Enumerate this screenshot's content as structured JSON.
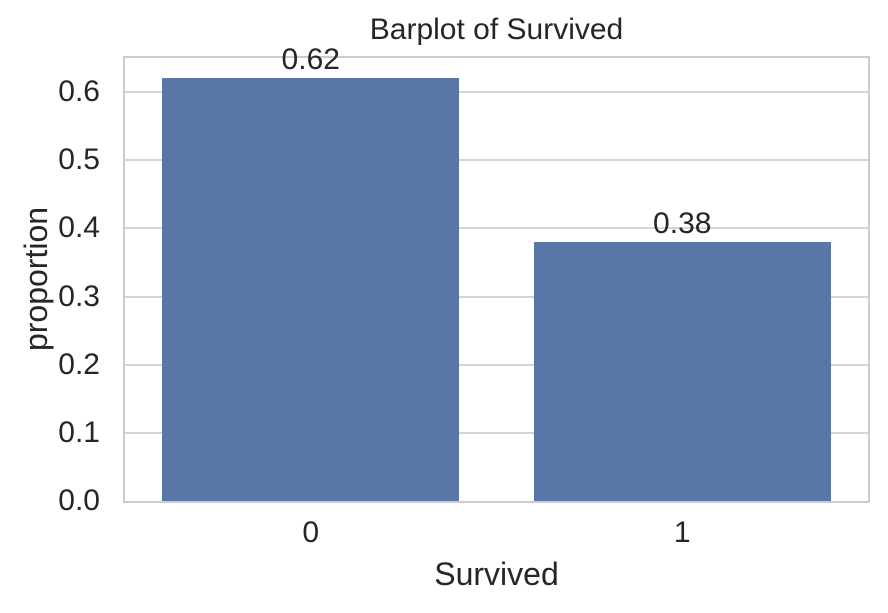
{
  "chart_data": {
    "type": "bar",
    "title": "Barplot of Survived",
    "xlabel": "Survived",
    "ylabel": "proportion",
    "categories": [
      "0",
      "1"
    ],
    "values": [
      0.62,
      0.38
    ],
    "bar_labels": [
      "0.62",
      "0.38"
    ],
    "ylim": [
      0,
      0.65
    ],
    "yticks": [
      0.0,
      0.1,
      0.2,
      0.3,
      0.4,
      0.5,
      0.6
    ],
    "ytick_labels": [
      "0.0",
      "0.1",
      "0.2",
      "0.3",
      "0.4",
      "0.5",
      "0.6"
    ],
    "grid": "horizontal",
    "legend": "none",
    "bar_width_fraction": 0.8,
    "colors": {
      "bar": "#5877a6",
      "grid": "#d5d5d5",
      "spine": "#cccccc",
      "text": "#262626",
      "background": "#ffffff"
    }
  }
}
